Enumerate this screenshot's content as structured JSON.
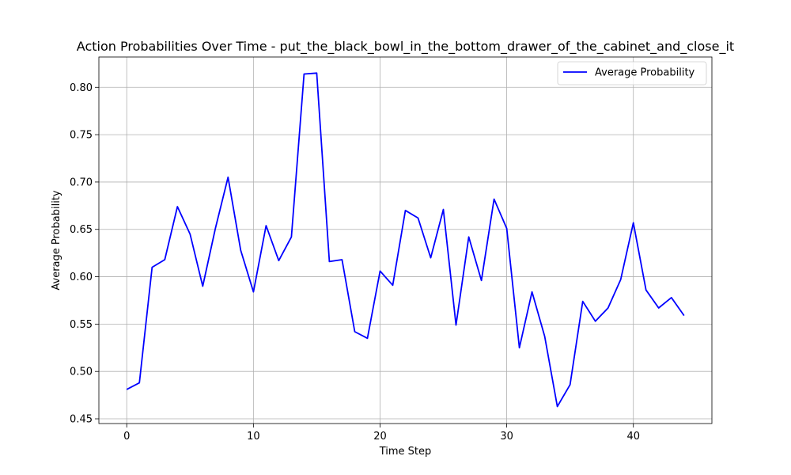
{
  "chart_data": {
    "type": "line",
    "title": "Action Probabilities Over Time - put_the_black_bowl_in_the_bottom_drawer_of_the_cabinet_and_close_it",
    "xlabel": "Time Step",
    "ylabel": "Average Probability",
    "xlim": [
      -2.2,
      46.2
    ],
    "ylim": [
      0.445,
      0.832
    ],
    "xticks": [
      0,
      10,
      20,
      30,
      40
    ],
    "yticks": [
      0.45,
      0.5,
      0.55,
      0.6,
      0.65,
      0.7,
      0.75,
      0.8
    ],
    "grid": true,
    "legend_position": "top-right",
    "series": [
      {
        "name": "Average Probability",
        "color": "#0000ff",
        "x": [
          0,
          1,
          2,
          3,
          4,
          5,
          6,
          7,
          8,
          9,
          10,
          11,
          12,
          13,
          14,
          15,
          16,
          17,
          18,
          19,
          20,
          21,
          22,
          23,
          24,
          25,
          26,
          27,
          28,
          29,
          30,
          31,
          32,
          33,
          34,
          35,
          36,
          37,
          38,
          39,
          40,
          41,
          42,
          43,
          44
        ],
        "y": [
          0.481,
          0.488,
          0.61,
          0.618,
          0.674,
          0.645,
          0.59,
          0.651,
          0.705,
          0.628,
          0.584,
          0.654,
          0.617,
          0.642,
          0.814,
          0.815,
          0.616,
          0.618,
          0.542,
          0.535,
          0.606,
          0.591,
          0.67,
          0.662,
          0.62,
          0.671,
          0.549,
          0.642,
          0.596,
          0.682,
          0.651,
          0.525,
          0.584,
          0.537,
          0.463,
          0.486,
          0.574,
          0.553,
          0.567,
          0.597,
          0.657,
          0.586,
          0.567,
          0.578,
          0.559
        ]
      }
    ]
  }
}
